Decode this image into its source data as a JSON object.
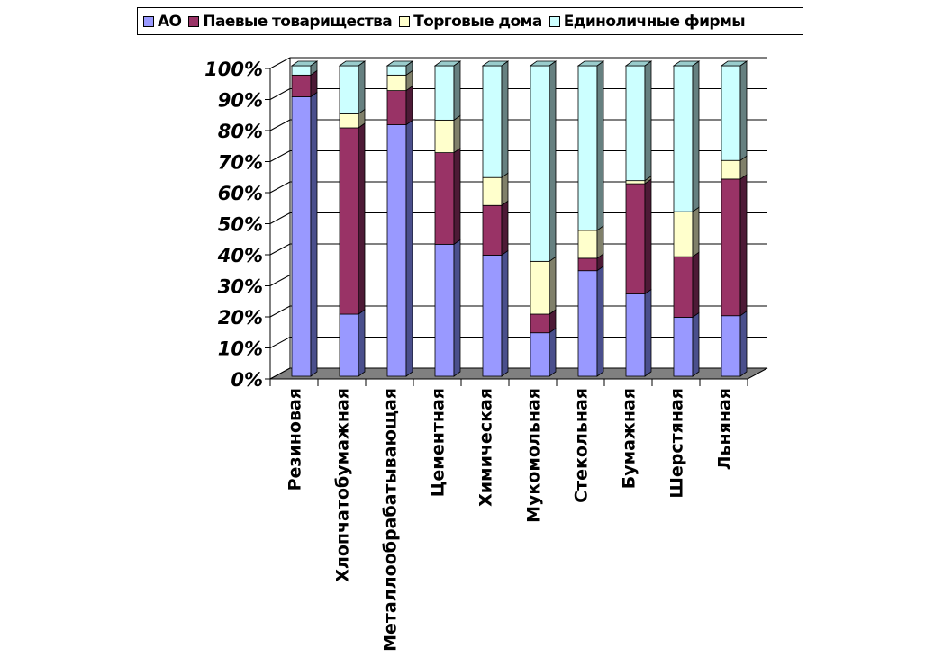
{
  "chart_data": {
    "type": "bar",
    "stacked": "percent",
    "three_d": true,
    "title": "",
    "xlabel": "",
    "ylabel": "",
    "ylim": [
      0,
      100
    ],
    "yticks": [
      "0%",
      "10%",
      "20%",
      "30%",
      "40%",
      "50%",
      "60%",
      "70%",
      "80%",
      "90%",
      "100%"
    ],
    "legend_position": "top",
    "grid": true,
    "categories": [
      "Резиновая",
      "Хлопчатобумажная",
      "Металлообрабатывающая",
      "Цементная",
      "Химическая",
      "Мукомольная",
      "Стекольная",
      "Бумажная",
      "Шерстяная",
      "Льняная"
    ],
    "series": [
      {
        "name": "АО",
        "color": "#9999ff",
        "side": "#4a4f8c",
        "values": [
          90,
          20,
          81,
          42.5,
          39,
          14,
          34,
          26.5,
          19,
          19.5
        ]
      },
      {
        "name": "Паевые товарищества",
        "color": "#993366",
        "side": "#4d1a36",
        "values": [
          7,
          60,
          11,
          29.5,
          16,
          6,
          4,
          35.5,
          19.5,
          44
        ]
      },
      {
        "name": "Торговые дома",
        "color": "#ffffcc",
        "side": "#80806a",
        "values": [
          0,
          4.5,
          5,
          10.5,
          9,
          17,
          9,
          1,
          14.5,
          6
        ]
      },
      {
        "name": "Единоличные фирмы",
        "color": "#ccffff",
        "side": "#668080",
        "values": [
          3,
          15.5,
          3,
          17.5,
          36,
          63,
          53,
          37,
          47,
          30.5
        ]
      }
    ]
  }
}
